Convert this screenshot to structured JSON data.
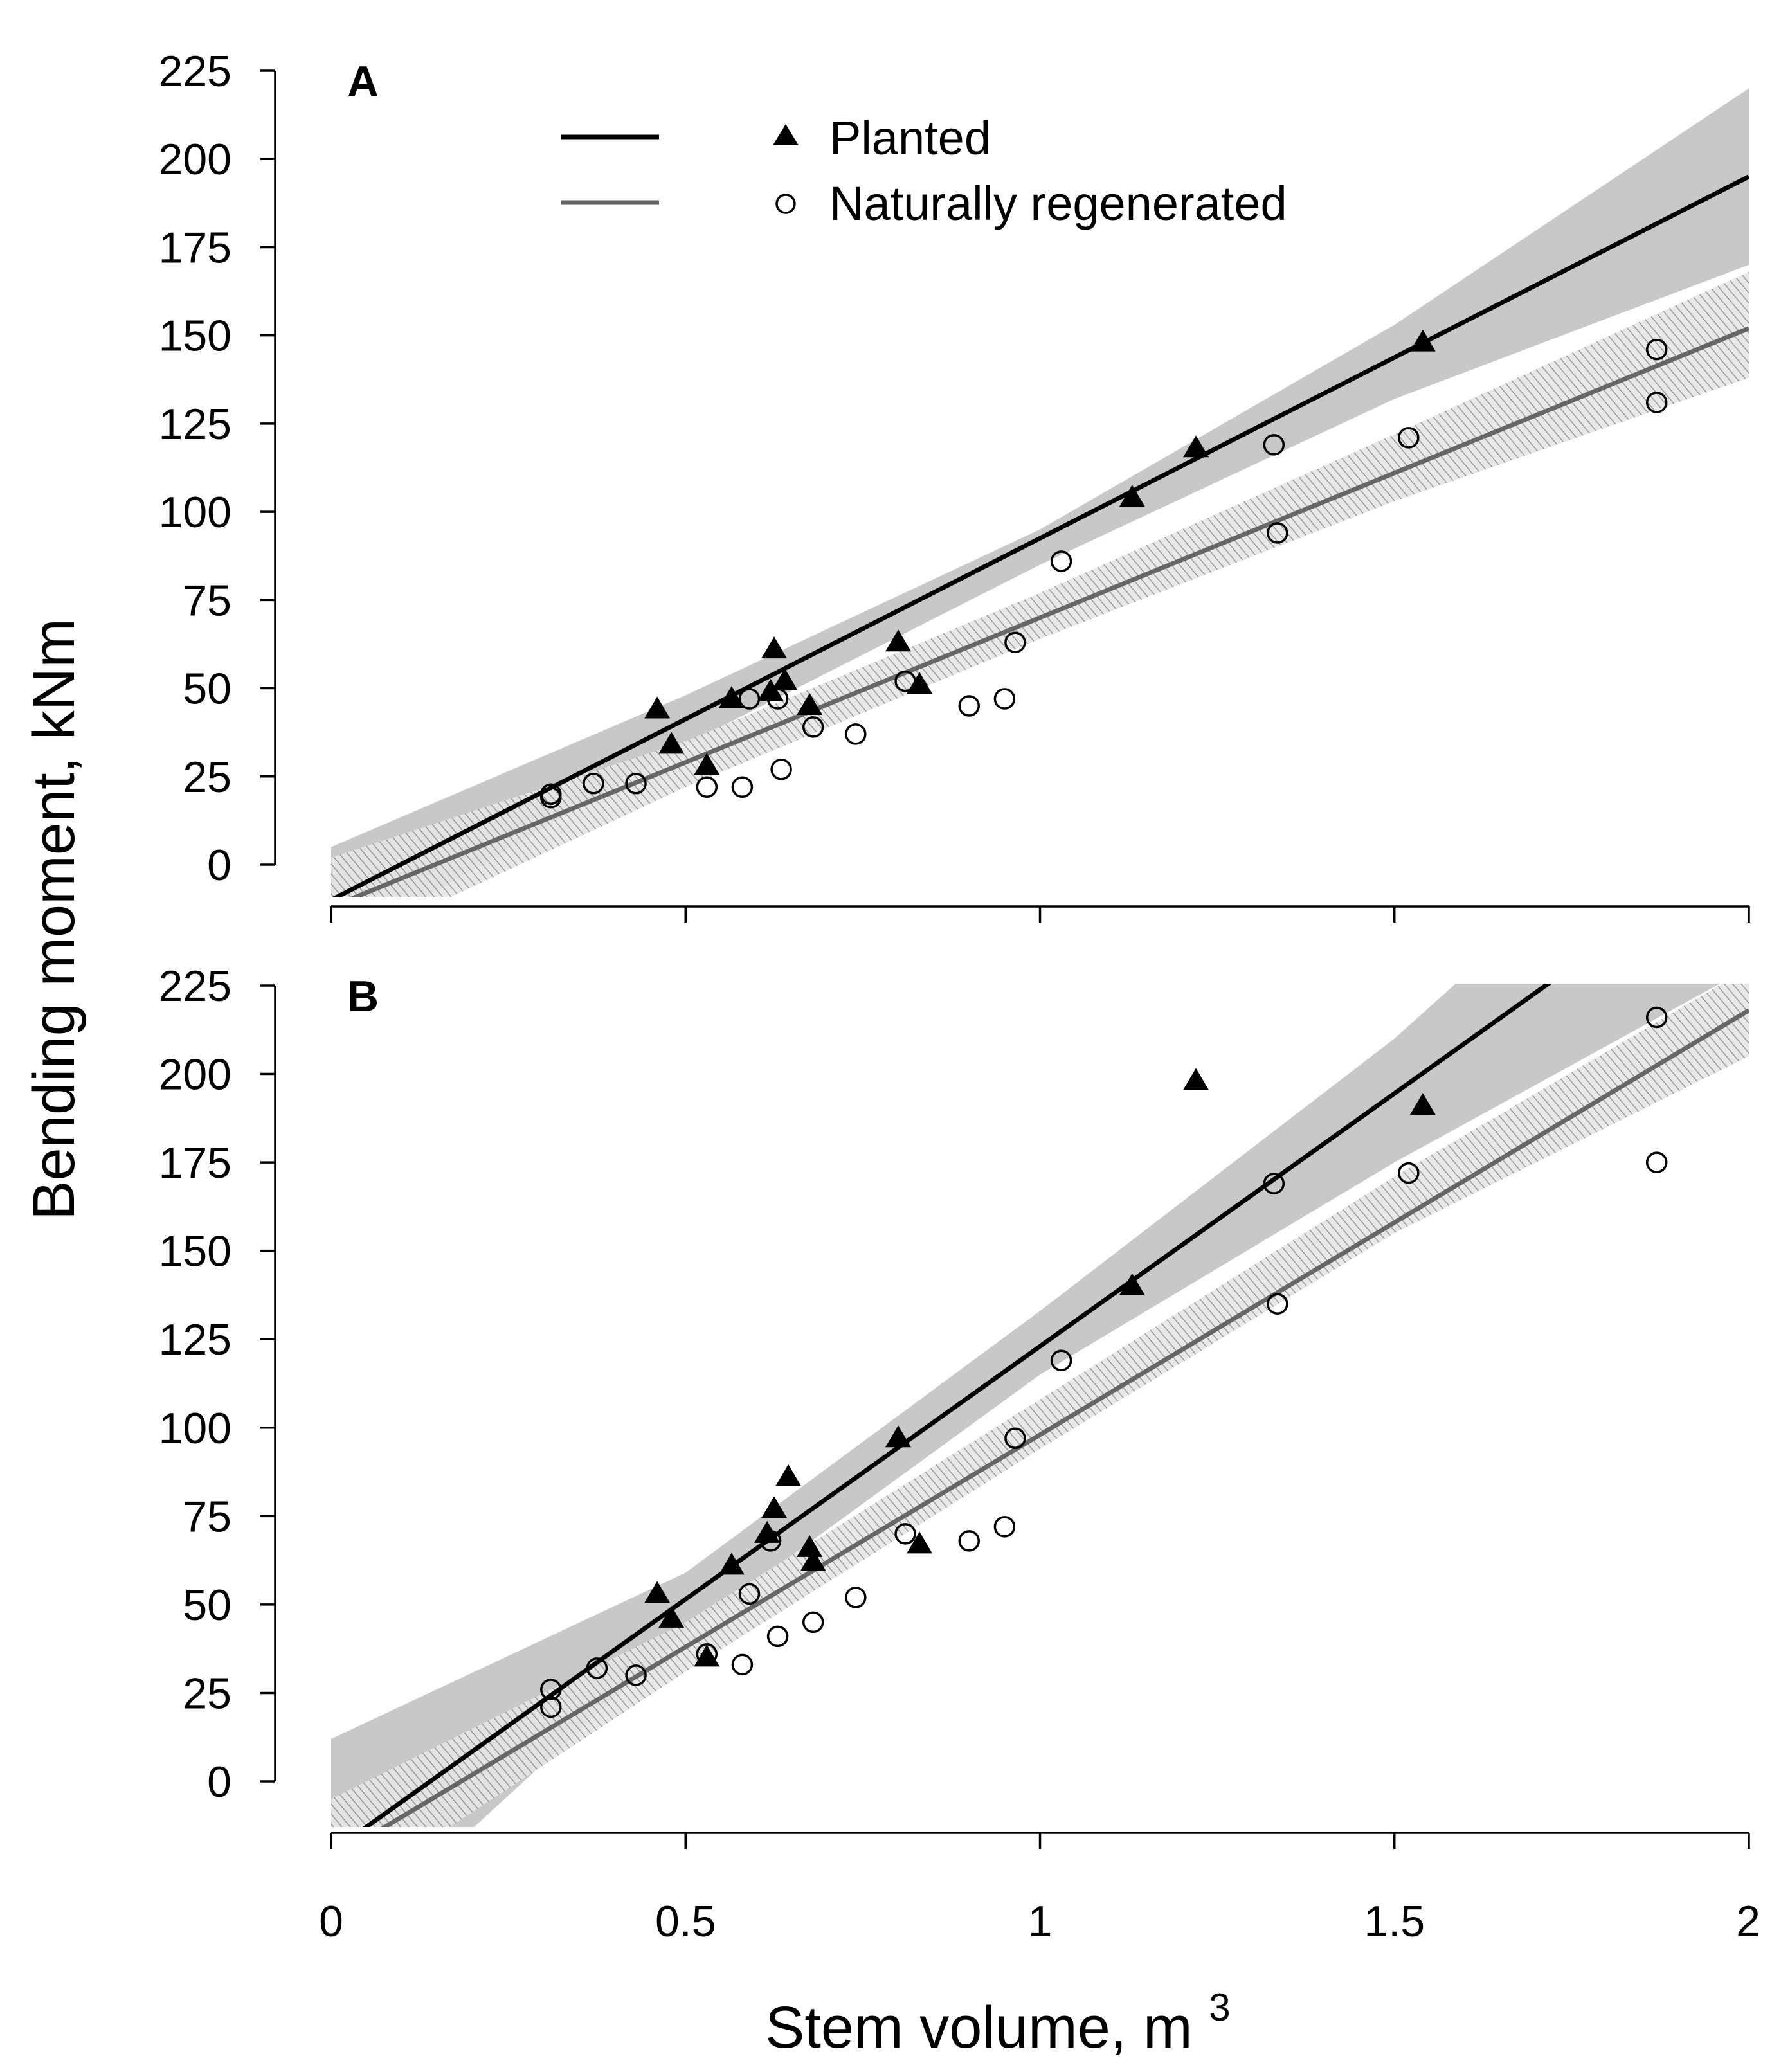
{
  "chart_data": [
    {
      "type": "scatter",
      "panel_label": "A",
      "xlim": [
        0,
        2
      ],
      "ylim": [
        0,
        225
      ],
      "yticks": [
        "0",
        "25",
        "50",
        "75",
        "100",
        "125",
        "150",
        "175",
        "200",
        "225"
      ],
      "series": [
        {
          "name": "Planted",
          "marker": "filled-triangle",
          "color": "#000000",
          "fit": {
            "intercept": -10,
            "slope": 102.5
          },
          "band": {
            "x": [
              0,
              0.5,
              1.0,
              1.5,
              2.0
            ],
            "lower": [
              -25,
              34,
              85,
              132,
              170
            ],
            "upper": [
              5,
              48,
              95,
              153,
              220
            ]
          },
          "points": [
            [
              0.46,
              44
            ],
            [
              0.48,
              34
            ],
            [
              0.53,
              28
            ],
            [
              0.565,
              47
            ],
            [
              0.62,
              49
            ],
            [
              0.625,
              61
            ],
            [
              0.64,
              52
            ],
            [
              0.675,
              45
            ],
            [
              0.8,
              63
            ],
            [
              0.83,
              51
            ],
            [
              1.13,
              104
            ],
            [
              1.22,
              118
            ],
            [
              1.54,
              148
            ]
          ]
        },
        {
          "name": "Naturally regenerated",
          "marker": "open-circle",
          "color": "#666666",
          "fit": {
            "intercept": -12,
            "slope": 82
          },
          "band": {
            "x": [
              0,
              0.5,
              1.0,
              1.5,
              2.0
            ],
            "lower": [
              -25,
              22,
              64,
              103,
              138
            ],
            "upper": [
              2,
              35,
              77,
              122,
              168
            ]
          },
          "points": [
            [
              0.31,
              20
            ],
            [
              0.31,
              19
            ],
            [
              0.37,
              23
            ],
            [
              0.43,
              23
            ],
            [
              0.53,
              22
            ],
            [
              0.58,
              22
            ],
            [
              0.59,
              47
            ],
            [
              0.63,
              47
            ],
            [
              0.635,
              27
            ],
            [
              0.68,
              39
            ],
            [
              0.74,
              37
            ],
            [
              0.81,
              52
            ],
            [
              0.9,
              45
            ],
            [
              0.95,
              47
            ],
            [
              0.965,
              63
            ],
            [
              1.03,
              86
            ],
            [
              1.33,
              119
            ],
            [
              1.335,
              94
            ],
            [
              1.52,
              121
            ],
            [
              1.87,
              146
            ],
            [
              1.87,
              131
            ]
          ]
        }
      ]
    },
    {
      "type": "scatter",
      "panel_label": "B",
      "xlim": [
        0,
        2
      ],
      "ylim": [
        0,
        225
      ],
      "yticks": [
        "0",
        "25",
        "50",
        "75",
        "100",
        "125",
        "150",
        "175",
        "200",
        "225"
      ],
      "series": [
        {
          "name": "Planted",
          "marker": "filled-triangle",
          "color": "#000000",
          "fit": {
            "intercept": -20,
            "slope": 143
          },
          "band": {
            "x": [
              0,
              0.5,
              1.0,
              1.5,
              2.0
            ],
            "lower": [
              -50,
              42,
              115,
              175,
              230
            ],
            "upper": [
              12,
              59,
              133,
              210,
              300
            ]
          },
          "points": [
            [
              0.46,
              53
            ],
            [
              0.48,
              46
            ],
            [
              0.53,
              35
            ],
            [
              0.565,
              61
            ],
            [
              0.615,
              70
            ],
            [
              0.625,
              77
            ],
            [
              0.645,
              86
            ],
            [
              0.675,
              66
            ],
            [
              0.68,
              62
            ],
            [
              0.8,
              97
            ],
            [
              0.83,
              67
            ],
            [
              1.13,
              140
            ],
            [
              1.22,
              198
            ],
            [
              1.54,
              191
            ]
          ]
        },
        {
          "name": "Naturally regenerated",
          "marker": "open-circle",
          "color": "#666666",
          "fit": {
            "intercept": -22,
            "slope": 120
          },
          "band": {
            "x": [
              0,
              0.5,
              1.0,
              1.5,
              2.0
            ],
            "lower": [
              -35,
              31,
              94,
              155,
              205
            ],
            "upper": [
              -5,
              45,
              108,
              171,
              230
            ]
          },
          "points": [
            [
              0.31,
              26
            ],
            [
              0.31,
              21
            ],
            [
              0.375,
              32
            ],
            [
              0.43,
              30
            ],
            [
              0.53,
              36
            ],
            [
              0.58,
              33
            ],
            [
              0.59,
              53
            ],
            [
              0.62,
              68
            ],
            [
              0.63,
              41
            ],
            [
              0.68,
              45
            ],
            [
              0.74,
              52
            ],
            [
              0.81,
              70
            ],
            [
              0.9,
              68
            ],
            [
              0.95,
              72
            ],
            [
              0.965,
              97
            ],
            [
              1.03,
              119
            ],
            [
              1.33,
              169
            ],
            [
              1.335,
              135
            ],
            [
              1.52,
              172
            ],
            [
              1.87,
              216
            ],
            [
              1.87,
              175
            ]
          ]
        }
      ]
    }
  ],
  "shared": {
    "xticks": [
      "0",
      "0.5",
      "1",
      "1.5",
      "2"
    ],
    "xlabel": "Stem volume, m",
    "xlabel_sup": "3",
    "ylabel": "Bending moment, kNm",
    "legend": [
      "Planted",
      "Naturally regenerated"
    ],
    "legend_position": "top-left of panel A",
    "colors": {
      "planted": "#000000",
      "natural": "#666666",
      "band_planted": "#c8c8c8",
      "band_natural": "#b4b4b4"
    }
  }
}
